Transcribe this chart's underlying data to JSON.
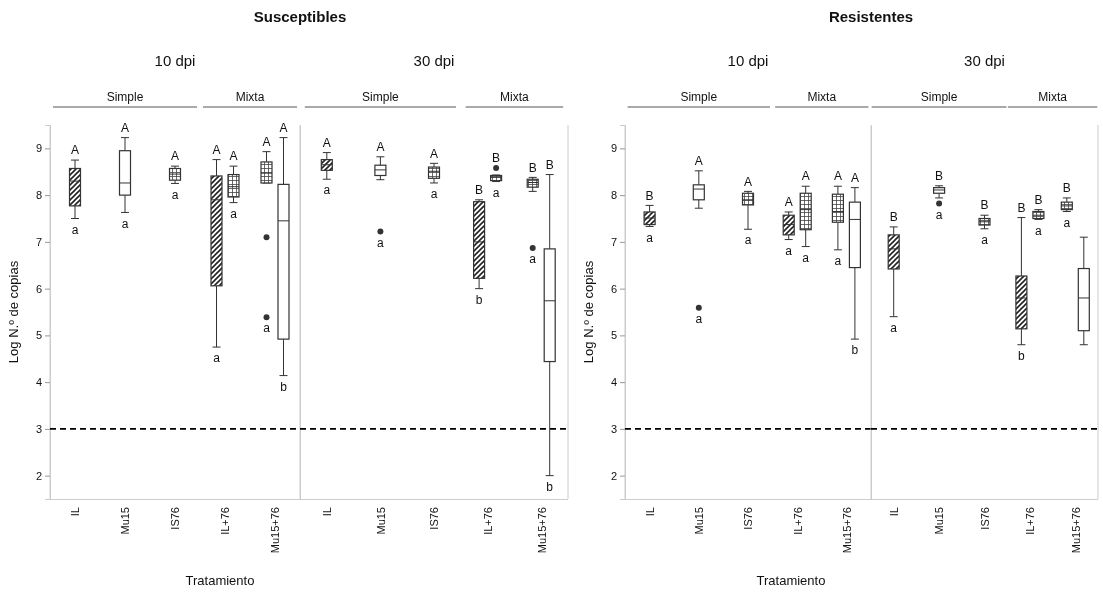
{
  "chart_data": [
    {
      "type": "box",
      "title": "Susceptibles",
      "subtitle": "10 dpi",
      "ylabel": "Log N.º de copias",
      "xlabel": "Tratamiento",
      "categories": [
        "IL",
        "Mu15",
        "IS76",
        "IL+76",
        "Mu15+76"
      ],
      "ylim": [
        1.5,
        9.5
      ],
      "yticks": [
        2,
        3,
        4,
        5,
        6,
        7,
        8,
        9
      ],
      "series": [
        {
          "color": "#333333",
          "boxes": [
            {
              "low": 7.5,
              "q1": 7.77,
              "median": 8.3,
              "q3": 8.57,
              "high": 8.75
            },
            null,
            null,
            {
              "low": 4.75,
              "q1": 6.06,
              "median": 7.9,
              "q3": 8.41,
              "high": 8.76
            },
            null
          ]
        },
        {
          "color": "#333333",
          "boxes": [
            null,
            null,
            {
              "low": 8.25,
              "q1": 8.32,
              "median": 8.45,
              "q3": 8.57,
              "high": 8.62
            },
            {
              "low": 7.84,
              "q1": 7.96,
              "median": 8.18,
              "q3": 8.44,
              "high": 8.62
            },
            {
              "low": 8.26,
              "q1": 8.26,
              "median": 8.47,
              "q3": 8.71,
              "high": 8.93,
              "outliers": [
                7.1,
                5.39
              ]
            }
          ]
        },
        {
          "color": "#333333",
          "boxes": [
            null,
            {
              "low": 7.63,
              "q1": 8.0,
              "median": 8.26,
              "q3": 8.95,
              "high": 9.23
            },
            null,
            null,
            {
              "low": 4.14,
              "q1": 4.92,
              "median": 7.45,
              "q3": 8.23,
              "high": 9.23
            }
          ]
        }
      ],
      "ref_lines": [
        {
          "axis": "y",
          "value": 3,
          "line_style": "dashed"
        }
      ],
      "annotations": [
        "Simple",
        "Mixta",
        "A",
        "a",
        "A",
        "a",
        "A",
        "a",
        "A",
        "a",
        "A",
        "a",
        "A",
        "a",
        "A",
        "b"
      ]
    },
    {
      "type": "box",
      "subtitle": "30 dpi",
      "categories": [
        "IL",
        "Mu15",
        "IS76",
        "IL+76",
        "Mu15+76"
      ],
      "ylim": [
        1.5,
        9.5
      ],
      "yticks": [
        2,
        3,
        4,
        5,
        6,
        7,
        8,
        9
      ],
      "tick_labels": "x",
      "series": [
        {
          "color": "#333333",
          "boxes": [
            {
              "low": 8.34,
              "q1": 8.53,
              "median": 8.65,
              "q3": 8.76,
              "high": 8.91
            },
            null,
            null,
            {
              "low": 6.0,
              "q1": 6.22,
              "median": 7.0,
              "q3": 7.86,
              "high": 7.9
            },
            null
          ]
        },
        {
          "color": "#333333",
          "boxes": [
            null,
            null,
            {
              "low": 8.26,
              "q1": 8.36,
              "median": 8.51,
              "q3": 8.6,
              "high": 8.68
            },
            {
              "low": 8.29,
              "q1": 8.31,
              "median": 8.38,
              "q3": 8.42,
              "high": 8.43,
              "outliers": [
                8.58
              ]
            },
            {
              "low": 8.08,
              "q1": 8.17,
              "median": 8.27,
              "q3": 8.34,
              "high": 8.38,
              "outliers": [
                6.87
              ]
            }
          ]
        },
        {
          "color": "#333333",
          "boxes": [
            null,
            {
              "low": 8.33,
              "q1": 8.42,
              "median": 8.54,
              "q3": 8.64,
              "high": 8.82,
              "outliers": [
                7.22
              ]
            },
            null,
            null,
            {
              "low": 2.0,
              "q1": 4.44,
              "median": 5.74,
              "q3": 6.85,
              "high": 8.44
            }
          ]
        }
      ],
      "ref_lines": [
        {
          "axis": "y",
          "value": 3,
          "line_style": "dashed"
        }
      ],
      "annotations": [
        "Simple",
        "Mixta",
        "A",
        "a",
        "A",
        "a",
        "A",
        "a",
        "B",
        "b",
        "B",
        "a",
        "B",
        "a",
        "B",
        "b"
      ]
    },
    {
      "type": "box",
      "title": "Resistentes",
      "subtitle": "10 dpi",
      "ylabel": "Log N.º de copias",
      "xlabel": "Tratamiento",
      "categories": [
        "IL",
        "Mu15",
        "IS76",
        "IL+76",
        "Mu15+76"
      ],
      "ylim": [
        1.5,
        9.5
      ],
      "yticks": [
        2,
        3,
        4,
        5,
        6,
        7,
        8,
        9
      ],
      "series": [
        {
          "color": "#333333",
          "boxes": [
            {
              "low": 7.33,
              "q1": 7.37,
              "median": 7.51,
              "q3": 7.64,
              "high": 7.78
            },
            null,
            null,
            {
              "low": 7.05,
              "q1": 7.15,
              "median": 7.37,
              "q3": 7.57,
              "high": 7.64
            },
            null
          ]
        },
        {
          "color": "#333333",
          "boxes": [
            null,
            null,
            {
              "low": 7.27,
              "q1": 7.79,
              "median": 7.9,
              "q3": 8.04,
              "high": 8.08
            },
            {
              "low": 6.9,
              "q1": 7.26,
              "median": 7.69,
              "q3": 8.04,
              "high": 8.19
            },
            {
              "low": 6.83,
              "q1": 7.42,
              "median": 7.65,
              "q3": 8.02,
              "high": 8.19
            }
          ]
        },
        {
          "color": "#333333",
          "boxes": [
            null,
            {
              "low": 7.72,
              "q1": 7.9,
              "median": 8.13,
              "q3": 8.22,
              "high": 8.52,
              "outliers": [
                5.59
              ]
            },
            null,
            null,
            {
              "low": 4.92,
              "q1": 6.45,
              "median": 7.48,
              "q3": 7.85,
              "high": 8.16
            }
          ]
        }
      ],
      "ref_lines": [
        {
          "axis": "y",
          "value": 3,
          "line_style": "dashed"
        }
      ],
      "annotations": [
        "Simple",
        "Mixta",
        "B",
        "a",
        "A",
        "a",
        "A",
        "a",
        "A",
        "a",
        "A",
        "a",
        "A",
        "a",
        "A",
        "b"
      ]
    },
    {
      "type": "box",
      "subtitle": "30 dpi",
      "categories": [
        "IL",
        "Mu15",
        "IS76",
        "IL+76",
        "Mu15+76"
      ],
      "ylim": [
        1.5,
        9.5
      ],
      "yticks": [
        2,
        3,
        4,
        5,
        6,
        7,
        8,
        9
      ],
      "tick_labels": "x",
      "series": [
        {
          "color": "#333333",
          "boxes": [
            {
              "low": 5.4,
              "q1": 6.42,
              "median": 6.85,
              "q3": 7.15,
              "high": 7.32
            },
            null,
            null,
            {
              "low": 4.8,
              "q1": 5.14,
              "median": 5.8,
              "q3": 6.27,
              "high": 7.52
            },
            null
          ]
        },
        {
          "color": "#333333",
          "boxes": [
            null,
            null,
            {
              "low": 7.28,
              "q1": 7.36,
              "median": 7.43,
              "q3": 7.5,
              "high": 7.57
            },
            {
              "low": 7.48,
              "q1": 7.5,
              "median": 7.57,
              "q3": 7.65,
              "high": 7.69
            },
            {
              "low": 7.65,
              "q1": 7.69,
              "median": 7.77,
              "q3": 7.85,
              "high": 7.94
            }
          ]
        },
        {
          "color": "#333333",
          "boxes": [
            null,
            {
              "low": 7.94,
              "q1": 8.04,
              "median": 8.11,
              "q3": 8.16,
              "high": 8.2,
              "outliers": [
                7.82
              ]
            },
            null,
            null,
            {
              "low": 4.8,
              "q1": 5.1,
              "median": 5.8,
              "q3": 6.43,
              "high": 7.1
            }
          ]
        }
      ],
      "ref_lines": [
        {
          "axis": "y",
          "value": 3,
          "line_style": "dashed"
        }
      ],
      "annotations": [
        "Simple",
        "Mixta",
        "B",
        "a",
        "B",
        "a",
        "B",
        "a",
        "B",
        "b",
        "B",
        "a",
        "B",
        "a"
      ]
    }
  ]
}
